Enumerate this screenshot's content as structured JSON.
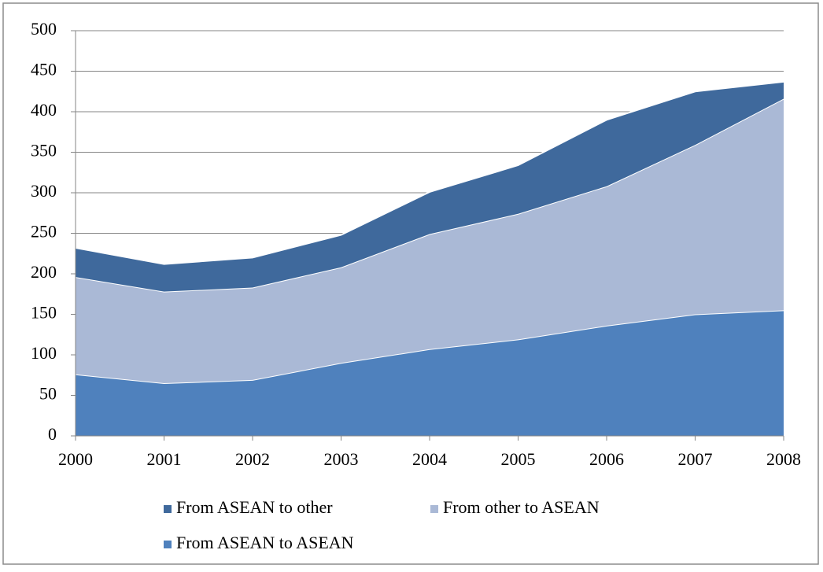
{
  "chart_data": {
    "type": "stacked-area",
    "categories": [
      "2000",
      "2001",
      "2002",
      "2003",
      "2004",
      "2005",
      "2006",
      "2007",
      "2008"
    ],
    "series": [
      {
        "name": "From ASEAN to ASEAN",
        "color": "#4f81bd",
        "values": [
          76,
          65,
          69,
          90,
          107,
          119,
          136,
          150,
          155
        ]
      },
      {
        "name": "From other to ASEAN",
        "color": "#aab9d6",
        "values": [
          120,
          113,
          114,
          118,
          142,
          155,
          172,
          209,
          261
        ]
      },
      {
        "name": "From ASEAN to other",
        "color": "#3f699c",
        "values": [
          36,
          34,
          37,
          40,
          52,
          60,
          82,
          66,
          21
        ]
      }
    ],
    "ylim": [
      0,
      500
    ],
    "yticks": [
      0,
      50,
      100,
      150,
      200,
      250,
      300,
      350,
      400,
      450,
      500
    ],
    "grid": true
  }
}
